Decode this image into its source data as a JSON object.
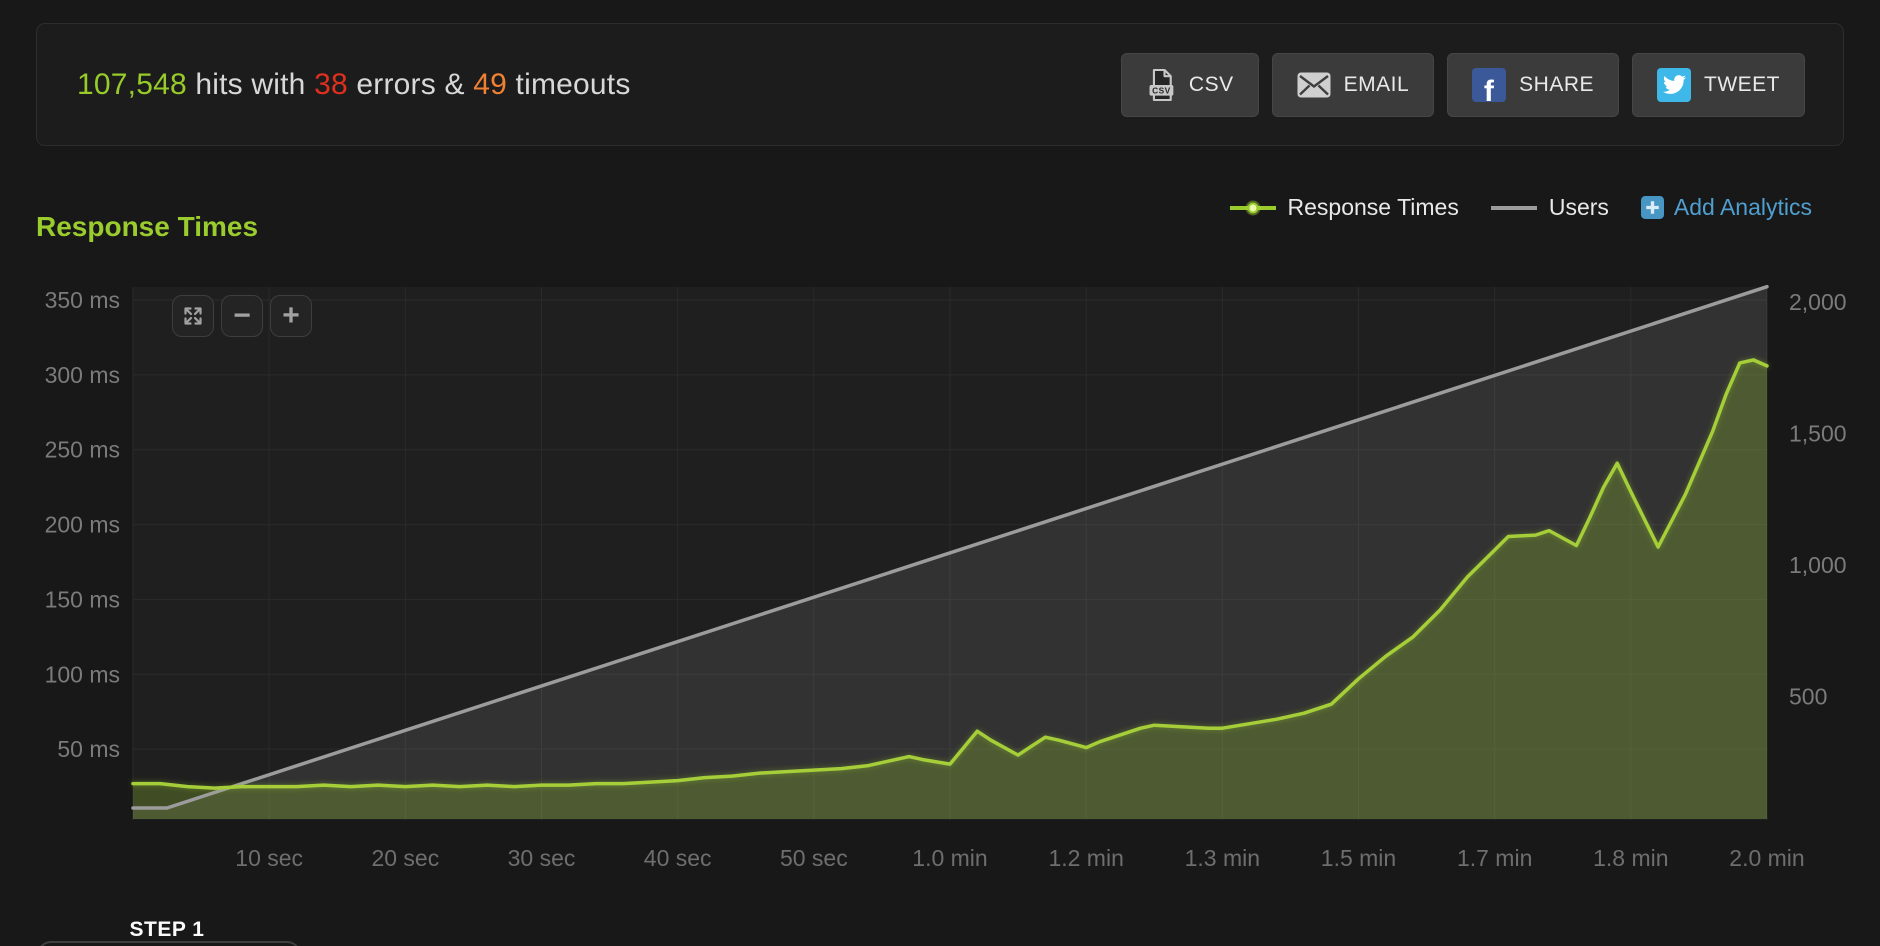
{
  "header": {
    "summary": {
      "hits": "107,548",
      "hits_suffix": " hits with ",
      "errors": "38",
      "errors_suffix": " errors & ",
      "timeouts": "49",
      "timeouts_suffix": " timeouts"
    },
    "buttons": [
      {
        "id": "csv",
        "label": "CSV"
      },
      {
        "id": "email",
        "label": "EMAIL"
      },
      {
        "id": "share",
        "label": "SHARE"
      },
      {
        "id": "tweet",
        "label": "TWEET"
      }
    ]
  },
  "section": {
    "title": "Response Times",
    "legend": [
      {
        "label": "Response Times"
      },
      {
        "label": "Users"
      }
    ],
    "add_analytics": "Add Analytics"
  },
  "chart_data": {
    "type": "area",
    "title": "Response Times",
    "legend_position": "top-right",
    "grid": true,
    "plot_bg": "#1f1f1f",
    "grid_color": "#2b2b2b",
    "x_range_seconds": [
      0,
      120
    ],
    "x_ticks": [
      {
        "t": 10,
        "label": "10 sec"
      },
      {
        "t": 20,
        "label": "20 sec"
      },
      {
        "t": 30,
        "label": "30 sec"
      },
      {
        "t": 40,
        "label": "40 sec"
      },
      {
        "t": 50,
        "label": "50 sec"
      },
      {
        "t": 60,
        "label": "1.0 min"
      },
      {
        "t": 70,
        "label": "1.2 min"
      },
      {
        "t": 80,
        "label": "1.3 min"
      },
      {
        "t": 90,
        "label": "1.5 min"
      },
      {
        "t": 100,
        "label": "1.7 min"
      },
      {
        "t": 110,
        "label": "1.8 min"
      },
      {
        "t": 120,
        "label": "2.0 min"
      }
    ],
    "left_axis": {
      "unit": "ms",
      "range": [
        0,
        360
      ],
      "ticks": [
        {
          "v": 50,
          "label": "50 ms"
        },
        {
          "v": 100,
          "label": "100 ms"
        },
        {
          "v": 150,
          "label": "150 ms"
        },
        {
          "v": 200,
          "label": "200 ms"
        },
        {
          "v": 250,
          "label": "250 ms"
        },
        {
          "v": 300,
          "label": "300 ms"
        },
        {
          "v": 350,
          "label": "350 ms"
        }
      ]
    },
    "right_axis": {
      "unit": "users",
      "range": [
        0,
        2060
      ],
      "ticks": [
        {
          "v": 500,
          "label": "500"
        },
        {
          "v": 1000,
          "label": "1,000"
        },
        {
          "v": 1500,
          "label": "1,500"
        },
        {
          "v": 2000,
          "label": "2,000"
        }
      ]
    },
    "series": [
      {
        "name": "Response Times",
        "axis": "left",
        "color": "#a5ce39",
        "fill": "rgba(154,205,50,0.26)",
        "points": [
          [
            0,
            27
          ],
          [
            2,
            27
          ],
          [
            4,
            25
          ],
          [
            6,
            24
          ],
          [
            8,
            25
          ],
          [
            10,
            25
          ],
          [
            12,
            25
          ],
          [
            14,
            26
          ],
          [
            16,
            25
          ],
          [
            18,
            26
          ],
          [
            20,
            25
          ],
          [
            22,
            26
          ],
          [
            24,
            25
          ],
          [
            26,
            26
          ],
          [
            28,
            25
          ],
          [
            30,
            26
          ],
          [
            32,
            26
          ],
          [
            34,
            27
          ],
          [
            36,
            27
          ],
          [
            38,
            28
          ],
          [
            40,
            29
          ],
          [
            42,
            31
          ],
          [
            44,
            32
          ],
          [
            46,
            34
          ],
          [
            48,
            35
          ],
          [
            50,
            36
          ],
          [
            52,
            37
          ],
          [
            54,
            39
          ],
          [
            56,
            43
          ],
          [
            57,
            45
          ],
          [
            58,
            43
          ],
          [
            60,
            40
          ],
          [
            62,
            62
          ],
          [
            63,
            56
          ],
          [
            65,
            46
          ],
          [
            66,
            52
          ],
          [
            67,
            58
          ],
          [
            68,
            56
          ],
          [
            70,
            51
          ],
          [
            71,
            55
          ],
          [
            72,
            58
          ],
          [
            74,
            64
          ],
          [
            75,
            66
          ],
          [
            77,
            65
          ],
          [
            79,
            64
          ],
          [
            80,
            64
          ],
          [
            82,
            67
          ],
          [
            84,
            70
          ],
          [
            86,
            74
          ],
          [
            88,
            80
          ],
          [
            90,
            97
          ],
          [
            92,
            112
          ],
          [
            94,
            125
          ],
          [
            96,
            143
          ],
          [
            98,
            165
          ],
          [
            100,
            183
          ],
          [
            101,
            192
          ],
          [
            103,
            193
          ],
          [
            104,
            196
          ],
          [
            106,
            186
          ],
          [
            107,
            205
          ],
          [
            108,
            225
          ],
          [
            109,
            241
          ],
          [
            110,
            222
          ],
          [
            112,
            185
          ],
          [
            114,
            220
          ],
          [
            116,
            262
          ],
          [
            117,
            287
          ],
          [
            118,
            308
          ],
          [
            119,
            310
          ],
          [
            120,
            306
          ]
        ]
      },
      {
        "name": "Users",
        "axis": "right",
        "color": "#9c9c9c",
        "fill": "rgba(255,255,255,0.085)",
        "points": [
          [
            0,
            76
          ],
          [
            2.5,
            76
          ],
          [
            120,
            2058
          ]
        ]
      }
    ]
  },
  "step_panel": {
    "label": "STEP 1"
  },
  "colors": {
    "accent_green": "#9bcc2e",
    "error_red": "#df2f1e",
    "timeout_orange": "#ee8133",
    "link_blue": "#4f9fd0",
    "facebook_blue": "#3b5998",
    "twitter_blue": "#3db8e8"
  }
}
